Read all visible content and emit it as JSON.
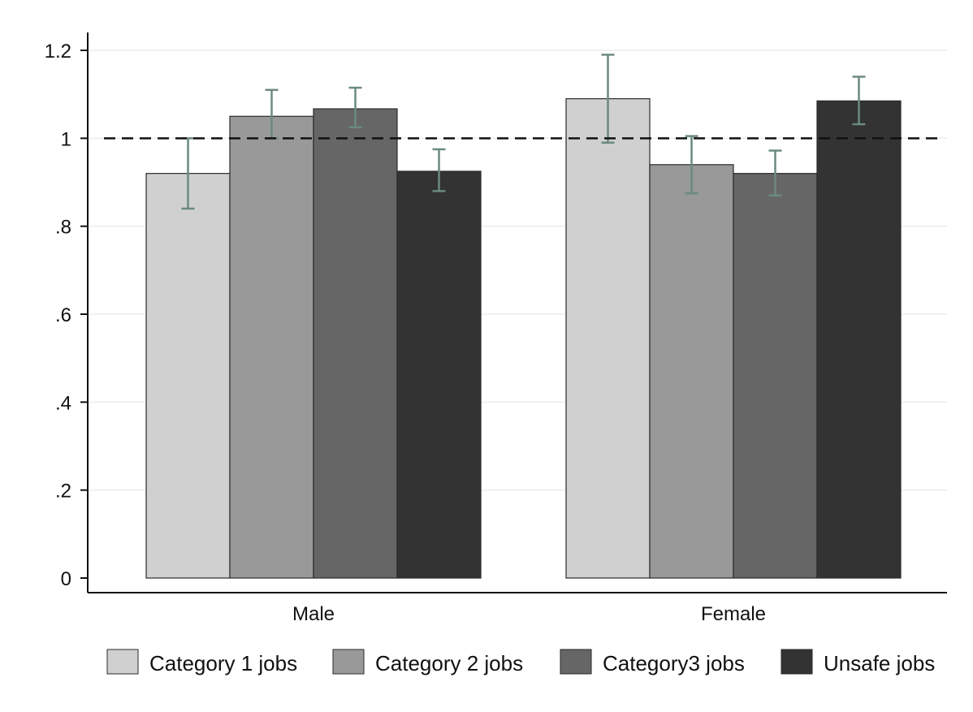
{
  "chart_data": {
    "type": "bar",
    "categories": [
      "Male",
      "Female"
    ],
    "series": [
      {
        "name": "Category 1 jobs",
        "color": "#d0d0d0",
        "values": [
          0.92,
          1.09
        ],
        "ci_low": [
          0.84,
          0.99
        ],
        "ci_high": [
          1.0,
          1.19
        ]
      },
      {
        "name": "Category 2 jobs",
        "color": "#999999",
        "values": [
          1.05,
          0.94
        ],
        "ci_low": [
          1.0,
          0.875
        ],
        "ci_high": [
          1.11,
          1.005
        ]
      },
      {
        "name": "Category3 jobs",
        "color": "#666666",
        "values": [
          1.067,
          0.92
        ],
        "ci_low": [
          1.025,
          0.87
        ],
        "ci_high": [
          1.115,
          0.972
        ]
      },
      {
        "name": "Unsafe jobs",
        "color": "#333333",
        "values": [
          0.925,
          1.085
        ],
        "ci_low": [
          0.88,
          1.032
        ],
        "ci_high": [
          0.975,
          1.14
        ]
      }
    ],
    "yticks": [
      0,
      0.2,
      0.4,
      0.6,
      0.8,
      1.0,
      1.2
    ],
    "ytick_labels": [
      "0",
      ".2",
      ".4",
      ".6",
      ".8",
      "1",
      "1.2"
    ],
    "ylim": [
      0,
      1.2
    ],
    "reference_line": 1,
    "title": "",
    "xlabel": "",
    "ylabel": "",
    "grid": true,
    "legend_position": "bottom",
    "colors": {
      "error_bar": "#6b8a80",
      "grid": "#e8eeee",
      "axis": "#111111"
    }
  }
}
